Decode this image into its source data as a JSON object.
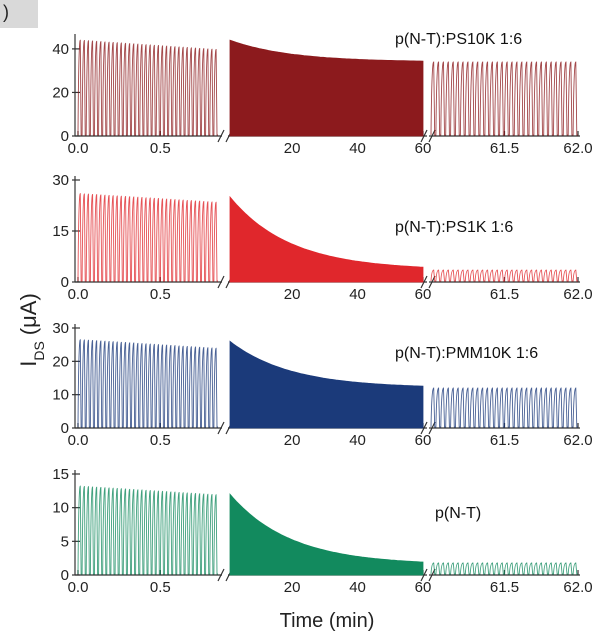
{
  "panel_letter": ")",
  "chart_data": {
    "type": "line",
    "ylabel_main": "I",
    "ylabel_sub": "DS",
    "ylabel_unit": "(μA)",
    "xlabel": "Time (min)",
    "x_segments": [
      {
        "name": "left",
        "xlim": [
          0.0,
          0.85
        ],
        "ticks": [
          0.0,
          0.5
        ],
        "tick_labels": [
          "0.0",
          "0.5"
        ]
      },
      {
        "name": "middle",
        "xlim": [
          1,
          60
        ],
        "ticks": [
          20,
          40,
          60
        ],
        "tick_labels": [
          "20",
          "40",
          "60"
        ]
      },
      {
        "name": "right",
        "xlim": [
          61,
          62.0
        ],
        "ticks": [
          61.5,
          62.0
        ],
        "tick_labels": [
          "61.5",
          "62.0"
        ]
      }
    ],
    "panels": [
      {
        "label": "p(N-T):PS10K 1:6",
        "color": "#8c1a1d",
        "ylim": [
          0,
          45
        ],
        "yticks": [
          0,
          20,
          40
        ],
        "ytick_labels": [
          "0",
          "20",
          "40"
        ],
        "pulse_min": 0,
        "left_peak": 44,
        "middle_start": 44,
        "middle_end": 34,
        "right_peak": 34,
        "left_cycles": 34,
        "right_cycles": 30
      },
      {
        "label": "p(N-T):PS1K 1:6",
        "color": "#e0272c",
        "ylim": [
          0,
          30
        ],
        "yticks": [
          0,
          15,
          30
        ],
        "ytick_labels": [
          "0",
          "15",
          "30"
        ],
        "pulse_min": 0,
        "left_peak": 26,
        "middle_start": 25,
        "middle_end": 3.5,
        "right_peak": 3.5,
        "left_cycles": 34,
        "right_cycles": 30
      },
      {
        "label": "p(N-T):PMM10K 1:6",
        "color": "#1b3a7a",
        "ylim": [
          0,
          30
        ],
        "yticks": [
          0,
          10,
          20,
          30
        ],
        "ytick_labels": [
          "0",
          "10",
          "20",
          "30"
        ],
        "pulse_min": 0,
        "left_peak": 26.5,
        "middle_start": 26,
        "middle_end": 12,
        "right_peak": 12,
        "left_cycles": 34,
        "right_cycles": 30
      },
      {
        "label": "p(N-T)",
        "color": "#128a5e",
        "ylim": [
          0,
          15
        ],
        "yticks": [
          0,
          5,
          10,
          15
        ],
        "ytick_labels": [
          "0",
          "5",
          "10",
          "15"
        ],
        "pulse_min": 0,
        "left_peak": 13.2,
        "middle_start": 12,
        "middle_end": 1.5,
        "right_peak": 1.8,
        "left_cycles": 34,
        "right_cycles": 30
      }
    ]
  }
}
